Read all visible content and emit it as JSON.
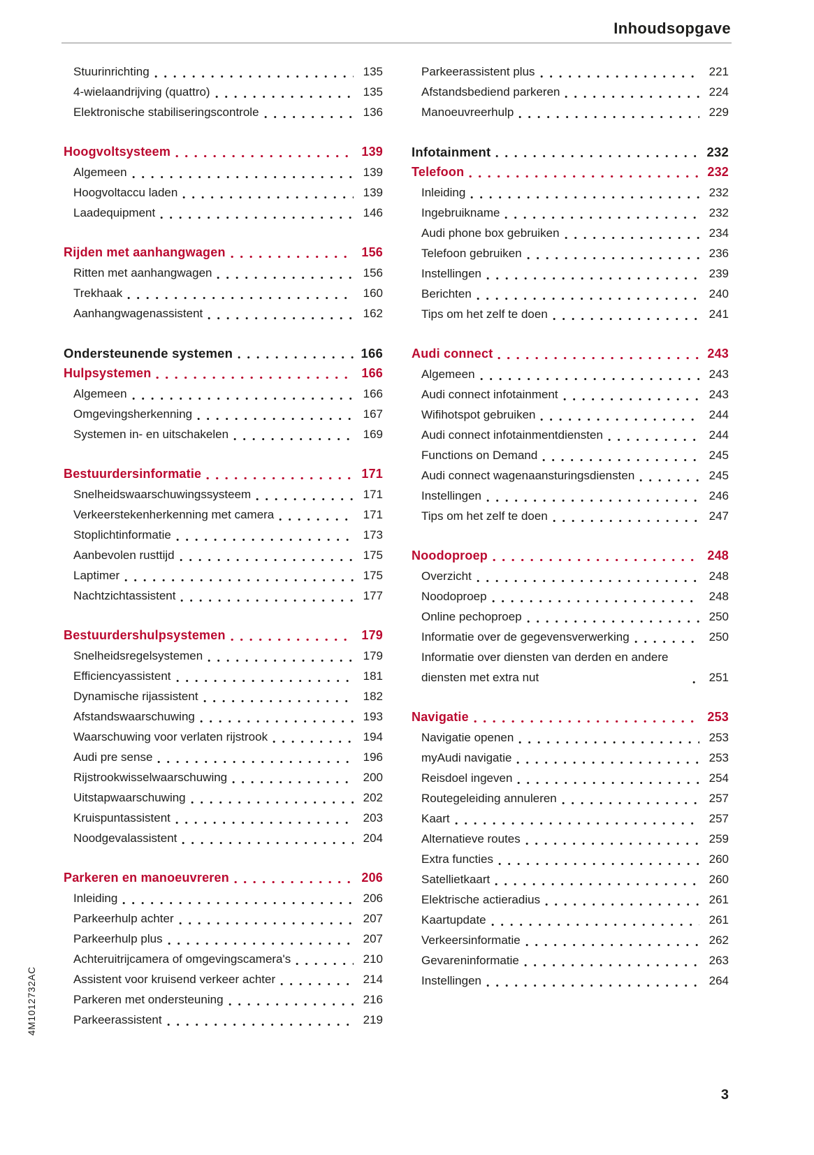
{
  "header": {
    "title": "Inhoudsopgave"
  },
  "footer": {
    "page_number": "3"
  },
  "spine_code": "4M1012732AC",
  "colors": {
    "accent_red": "#bb0a30",
    "text": "#1d1d1b"
  },
  "columns": [
    {
      "blocks": [
        {
          "entries": [
            {
              "title": "Stuurinrichting",
              "page": "135",
              "style": "normal"
            },
            {
              "title": "4-wielaandrijving (quattro)",
              "page": "135",
              "style": "normal"
            },
            {
              "title": "Elektronische stabiliseringscontrole",
              "page": "136",
              "style": "normal"
            }
          ]
        },
        {
          "entries": [
            {
              "title": "Hoogvoltsysteem",
              "page": "139",
              "style": "chapter"
            },
            {
              "title": "Algemeen",
              "page": "139",
              "style": "normal"
            },
            {
              "title": "Hoogvoltaccu laden",
              "page": "139",
              "style": "normal"
            },
            {
              "title": "Laadequipment",
              "page": "146",
              "style": "normal"
            }
          ]
        },
        {
          "entries": [
            {
              "title": "Rijden met aanhangwagen",
              "page": "156",
              "style": "chapter"
            },
            {
              "title": "Ritten met aanhangwagen",
              "page": "156",
              "style": "normal"
            },
            {
              "title": "Trekhaak",
              "page": "160",
              "style": "normal"
            },
            {
              "title": "Aanhangwagenassistent",
              "page": "162",
              "style": "normal"
            }
          ]
        },
        {
          "entries": [
            {
              "title": "Ondersteunende systemen",
              "page": "166",
              "style": "part"
            },
            {
              "title": "Hulpsystemen",
              "page": "166",
              "style": "chapter"
            },
            {
              "title": "Algemeen",
              "page": "166",
              "style": "normal"
            },
            {
              "title": "Omgevingsherkenning",
              "page": "167",
              "style": "normal"
            },
            {
              "title": "Systemen in- en uitschakelen",
              "page": "169",
              "style": "normal"
            }
          ]
        },
        {
          "entries": [
            {
              "title": "Bestuurdersinformatie",
              "page": "171",
              "style": "chapter"
            },
            {
              "title": "Snelheidswaarschuwingssysteem",
              "page": "171",
              "style": "normal"
            },
            {
              "title": "Verkeerstekenherkenning met camera",
              "page": "171",
              "style": "normal"
            },
            {
              "title": "Stoplichtinformatie",
              "page": "173",
              "style": "normal"
            },
            {
              "title": "Aanbevolen rusttijd",
              "page": "175",
              "style": "normal"
            },
            {
              "title": "Laptimer",
              "page": "175",
              "style": "normal"
            },
            {
              "title": "Nachtzichtassistent",
              "page": "177",
              "style": "normal"
            }
          ]
        },
        {
          "entries": [
            {
              "title": "Bestuurdershulpsystemen",
              "page": "179",
              "style": "chapter"
            },
            {
              "title": "Snelheidsregelsystemen",
              "page": "179",
              "style": "normal"
            },
            {
              "title": "Efficiencyassistent",
              "page": "181",
              "style": "normal"
            },
            {
              "title": "Dynamische rijassistent",
              "page": "182",
              "style": "normal"
            },
            {
              "title": "Afstandswaarschuwing",
              "page": "193",
              "style": "normal"
            },
            {
              "title": "Waarschuwing voor verlaten rijstrook",
              "page": "194",
              "style": "normal"
            },
            {
              "title": "Audi pre sense",
              "page": "196",
              "style": "normal"
            },
            {
              "title": "Rijstrookwisselwaarschuwing",
              "page": "200",
              "style": "normal"
            },
            {
              "title": "Uitstapwaarschuwing",
              "page": "202",
              "style": "normal"
            },
            {
              "title": "Kruispuntassistent",
              "page": "203",
              "style": "normal"
            },
            {
              "title": "Noodgevalassistent",
              "page": "204",
              "style": "normal"
            }
          ]
        },
        {
          "entries": [
            {
              "title": "Parkeren en manoeuvreren",
              "page": "206",
              "style": "chapter"
            },
            {
              "title": "Inleiding",
              "page": "206",
              "style": "normal"
            },
            {
              "title": "Parkeerhulp achter",
              "page": "207",
              "style": "normal"
            },
            {
              "title": "Parkeerhulp plus",
              "page": "207",
              "style": "normal"
            },
            {
              "title": "Achteruitrijcamera of omgevingscamera's",
              "page": "210",
              "style": "normal"
            },
            {
              "title": "Assistent voor kruisend verkeer achter",
              "page": "214",
              "style": "normal"
            },
            {
              "title": "Parkeren met ondersteuning",
              "page": "216",
              "style": "normal"
            },
            {
              "title": "Parkeerassistent",
              "page": "219",
              "style": "normal"
            }
          ]
        }
      ]
    },
    {
      "blocks": [
        {
          "entries": [
            {
              "title": "Parkeerassistent plus",
              "page": "221",
              "style": "normal"
            },
            {
              "title": "Afstandsbediend parkeren",
              "page": "224",
              "style": "normal"
            },
            {
              "title": "Manoeuvreerhulp",
              "page": "229",
              "style": "normal"
            }
          ]
        },
        {
          "entries": [
            {
              "title": "Infotainment",
              "page": "232",
              "style": "part"
            },
            {
              "title": "Telefoon",
              "page": "232",
              "style": "chapter"
            },
            {
              "title": "Inleiding",
              "page": "232",
              "style": "normal"
            },
            {
              "title": "Ingebruikname",
              "page": "232",
              "style": "normal"
            },
            {
              "title": "Audi phone box gebruiken",
              "page": "234",
              "style": "normal"
            },
            {
              "title": "Telefoon gebruiken",
              "page": "236",
              "style": "normal"
            },
            {
              "title": "Instellingen",
              "page": "239",
              "style": "normal"
            },
            {
              "title": "Berichten",
              "page": "240",
              "style": "normal"
            },
            {
              "title": "Tips om het zelf te doen",
              "page": "241",
              "style": "normal"
            }
          ]
        },
        {
          "entries": [
            {
              "title": "Audi connect",
              "page": "243",
              "style": "chapter"
            },
            {
              "title": "Algemeen",
              "page": "243",
              "style": "normal"
            },
            {
              "title": "Audi connect infotainment",
              "page": "243",
              "style": "normal"
            },
            {
              "title": "Wifihotspot gebruiken",
              "page": "244",
              "style": "normal"
            },
            {
              "title": "Audi connect infotainmentdiensten",
              "page": "244",
              "style": "normal"
            },
            {
              "title": "Functions on Demand",
              "page": "245",
              "style": "normal"
            },
            {
              "title": "Audi connect wagenaansturingsdiensten",
              "page": "245",
              "style": "normal"
            },
            {
              "title": "Instellingen",
              "page": "246",
              "style": "normal"
            },
            {
              "title": "Tips om het zelf te doen",
              "page": "247",
              "style": "normal"
            }
          ]
        },
        {
          "entries": [
            {
              "title": "Noodoproep",
              "page": "248",
              "style": "chapter"
            },
            {
              "title": "Overzicht",
              "page": "248",
              "style": "normal"
            },
            {
              "title": "Noodoproep",
              "page": "248",
              "style": "normal"
            },
            {
              "title": "Online pechoproep",
              "page": "250",
              "style": "normal"
            },
            {
              "title": "Informatie over de gegevensverwerking",
              "page": "250",
              "style": "normal"
            },
            {
              "title": "Informatie over diensten van derden en andere diensten met extra nut",
              "page": "251",
              "style": "normal"
            }
          ]
        },
        {
          "entries": [
            {
              "title": "Navigatie",
              "page": "253",
              "style": "chapter"
            },
            {
              "title": "Navigatie openen",
              "page": "253",
              "style": "normal"
            },
            {
              "title": "myAudi navigatie",
              "page": "253",
              "style": "normal"
            },
            {
              "title": "Reisdoel ingeven",
              "page": "254",
              "style": "normal"
            },
            {
              "title": "Routegeleiding annuleren",
              "page": "257",
              "style": "normal"
            },
            {
              "title": "Kaart",
              "page": "257",
              "style": "normal"
            },
            {
              "title": "Alternatieve routes",
              "page": "259",
              "style": "normal"
            },
            {
              "title": "Extra functies",
              "page": "260",
              "style": "normal"
            },
            {
              "title": "Satellietkaart",
              "page": "260",
              "style": "normal"
            },
            {
              "title": "Elektrische actieradius",
              "page": "261",
              "style": "normal"
            },
            {
              "title": "Kaartupdate",
              "page": "261",
              "style": "normal"
            },
            {
              "title": "Verkeersinformatie",
              "page": "262",
              "style": "normal"
            },
            {
              "title": "Gevareninformatie",
              "page": "263",
              "style": "normal"
            },
            {
              "title": "Instellingen",
              "page": "264",
              "style": "normal"
            }
          ]
        }
      ]
    }
  ]
}
